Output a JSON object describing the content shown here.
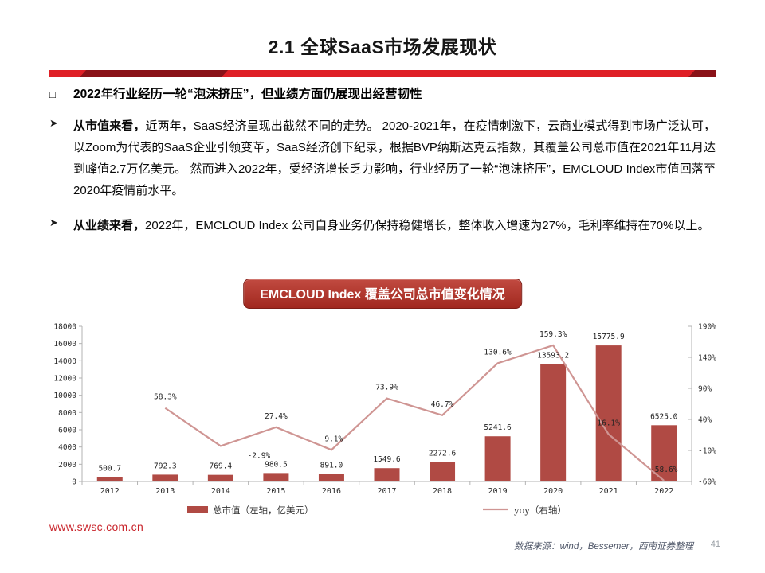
{
  "slide": {
    "title": "2.1 全球SaaS市场发展现状",
    "website": "www.swsc.com.cn",
    "source": "数据来源：wind，Bessemer，西南证券整理",
    "page_number": "41"
  },
  "content": {
    "heading": "2022年行业经历一轮“泡沫挤压”，但业绩方面仍展现出经营韧性",
    "bullets": [
      {
        "lead": "从市值来看，",
        "text": "近两年，SaaS经济呈现出截然不同的走势。 2020-2021年，在疫情刺激下，云商业模式得到市场广泛认可，以Zoom为代表的SaaS企业引领变革，SaaS经济创下纪录，根据BVP纳斯达克云指数，其覆盖公司总市值在2021年11月达到峰值2.7万亿美元。 然而进入2022年，受经济增长乏力影响，行业经历了一轮“泡沫挤压”，EMCLOUD Index市值回落至2020年疫情前水平。"
      },
      {
        "lead": "从业绩来看，",
        "text": "2022年，EMCLOUD Index 公司自身业务仍保持稳健增长，整体收入增速为27%，毛利率维持在70%以上。"
      }
    ],
    "chart_caption": "EMCLOUD Index 覆盖公司总市值变化情况"
  },
  "chart_data": {
    "type": "bar+line combo",
    "title": "EMCLOUD Index 覆盖公司总市值变化情况",
    "categories": [
      "2012",
      "2013",
      "2014",
      "2015",
      "2016",
      "2017",
      "2018",
      "2019",
      "2020",
      "2021",
      "2022"
    ],
    "series": [
      {
        "name": "总市值（左轴，亿美元）",
        "type": "bar",
        "axis": "left",
        "color": "#b04a44",
        "values": [
          500.7,
          792.3,
          769.4,
          980.5,
          891.0,
          1549.6,
          2272.6,
          5241.6,
          13593.2,
          15775.9,
          6525.0
        ],
        "labels": [
          "500.7",
          "792.3",
          "769.4",
          "980.5",
          "891.0",
          "1549.6",
          "2272.6",
          "5241.6",
          "13593.2",
          "15775.9",
          "6525.0"
        ]
      },
      {
        "name": "yoy（右轴）",
        "type": "line",
        "axis": "right",
        "color": "#cf9593",
        "values": [
          null,
          58.3,
          -2.9,
          27.4,
          -9.1,
          73.9,
          46.7,
          130.6,
          159.3,
          16.1,
          -58.6
        ],
        "labels": [
          null,
          "58.3%",
          "-2.9%",
          "27.4%",
          "-9.1%",
          "73.9%",
          "46.7%",
          "130.6%",
          "159.3%",
          "16.1%",
          "-58.6%"
        ],
        "label_offsets": [
          null,
          null,
          [
            48,
            15
          ],
          null,
          null,
          null,
          null,
          null,
          null,
          null,
          null
        ]
      }
    ],
    "left_axis": {
      "min": 0,
      "max": 18000,
      "step": 2000
    },
    "right_axis": {
      "min": -60,
      "max": 190,
      "step": 50,
      "suffix": "%"
    },
    "grid": "off",
    "legend_position": "bottom",
    "axis_color": "#b3b3b3"
  }
}
